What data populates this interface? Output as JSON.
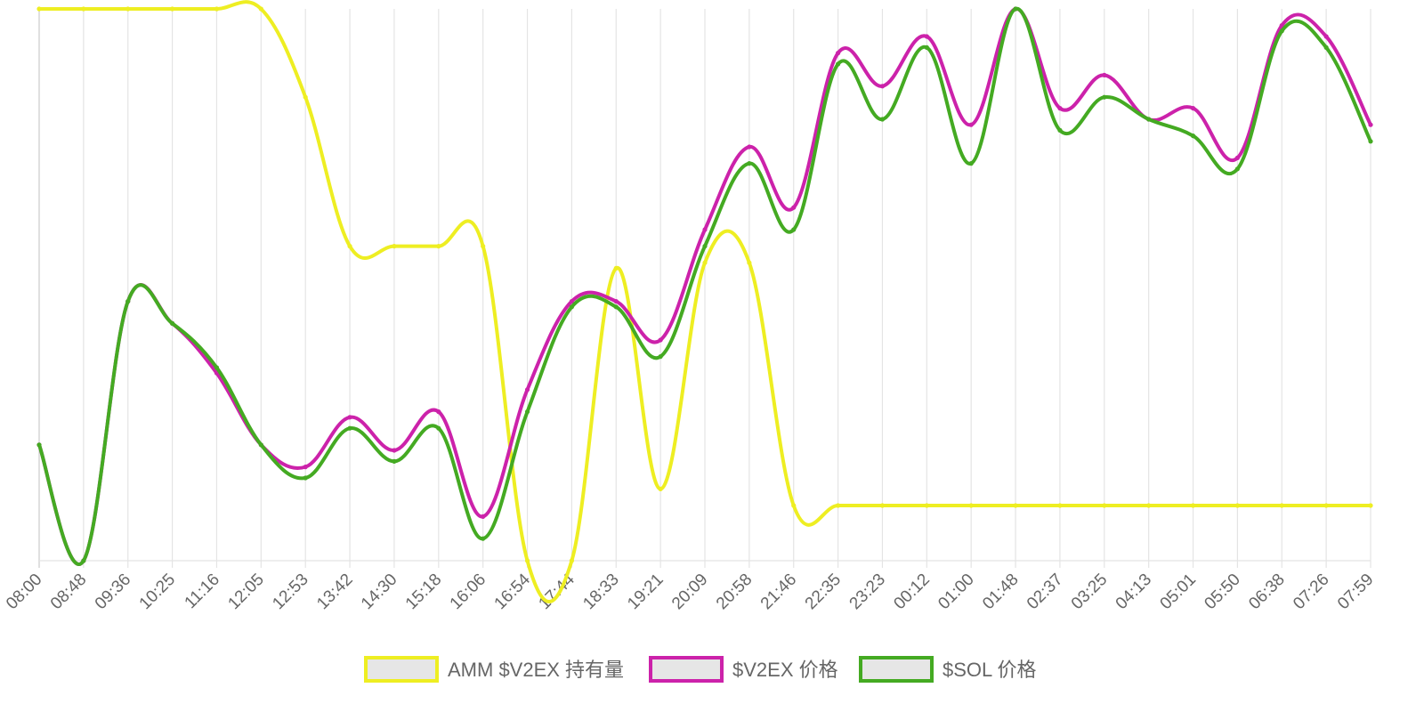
{
  "chart_data": {
    "type": "line",
    "title": "",
    "xlabel": "",
    "ylabel": "",
    "x": [
      "08:00",
      "08:48",
      "09:36",
      "10:25",
      "11:16",
      "12:05",
      "12:53",
      "13:42",
      "14:30",
      "15:18",
      "16:06",
      "16:54",
      "17:44",
      "18:33",
      "19:21",
      "20:09",
      "20:58",
      "21:46",
      "22:35",
      "23:23",
      "00:12",
      "01:00",
      "01:48",
      "02:37",
      "03:25",
      "04:13",
      "05:01",
      "05:50",
      "06:38",
      "07:26",
      "07:59"
    ],
    "y_axis_labels_visible": false,
    "normalized_scale": [
      0,
      1
    ],
    "grid": "vertical",
    "legend_position": "bottom",
    "series": [
      {
        "name": "AMM $V2EX 持有量",
        "color": "#eeee22",
        "values": [
          1.0,
          1.0,
          1.0,
          1.0,
          1.0,
          1.0,
          0.84,
          0.57,
          0.57,
          0.57,
          0.57,
          0.0,
          0.0,
          0.53,
          0.13,
          0.54,
          0.54,
          0.1,
          0.1,
          0.1,
          0.1,
          0.1,
          0.1,
          0.1,
          0.1,
          0.1,
          0.1,
          0.1,
          0.1,
          0.1,
          0.1
        ]
      },
      {
        "name": "$V2EX 价格",
        "color": "#cc22aa",
        "values": [
          0.21,
          0.0,
          0.47,
          0.43,
          0.34,
          0.21,
          0.17,
          0.26,
          0.2,
          0.27,
          0.08,
          0.31,
          0.47,
          0.47,
          0.4,
          0.6,
          0.75,
          0.64,
          0.92,
          0.86,
          0.95,
          0.79,
          1.0,
          0.82,
          0.88,
          0.8,
          0.82,
          0.73,
          0.97,
          0.95,
          0.79
        ]
      },
      {
        "name": "$SOL 价格",
        "color": "#44aa22",
        "values": [
          0.21,
          0.0,
          0.47,
          0.43,
          0.35,
          0.21,
          0.15,
          0.24,
          0.18,
          0.24,
          0.04,
          0.27,
          0.46,
          0.46,
          0.37,
          0.57,
          0.72,
          0.6,
          0.9,
          0.8,
          0.93,
          0.72,
          1.0,
          0.78,
          0.84,
          0.8,
          0.77,
          0.71,
          0.96,
          0.93,
          0.76
        ]
      }
    ]
  }
}
